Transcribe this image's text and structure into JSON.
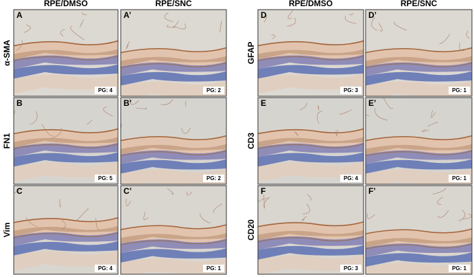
{
  "blocks": [
    {
      "columns": [
        "RPE/DMSO",
        "RPE/SNC"
      ],
      "rows": [
        {
          "label": "α-SMA",
          "panels": [
            {
              "letter": "A",
              "pg": "PG: 4"
            },
            {
              "letter": "A’",
              "pg": "PG: 2"
            }
          ]
        },
        {
          "label": "FN1",
          "panels": [
            {
              "letter": "B",
              "pg": "PG: 5"
            },
            {
              "letter": "B’",
              "pg": "PG: 2"
            }
          ]
        },
        {
          "label": "Vim",
          "panels": [
            {
              "letter": "C",
              "pg": "PG: 4"
            },
            {
              "letter": "C’",
              "pg": "PG: 1"
            }
          ]
        }
      ]
    },
    {
      "columns": [
        "RPE/DMSO",
        "RPE/SNC"
      ],
      "rows": [
        {
          "label": "GFAP",
          "panels": [
            {
              "letter": "D",
              "pg": "PG: 3"
            },
            {
              "letter": "D’",
              "pg": "PG: 1"
            }
          ]
        },
        {
          "label": "CD3",
          "panels": [
            {
              "letter": "E",
              "pg": "PG: 4"
            },
            {
              "letter": "E’",
              "pg": "PG: 1"
            }
          ]
        },
        {
          "label": "CD20",
          "panels": [
            {
              "letter": "F",
              "pg": "PG: 3"
            },
            {
              "letter": "F’",
              "pg": "PG: 1"
            }
          ]
        }
      ]
    }
  ]
}
